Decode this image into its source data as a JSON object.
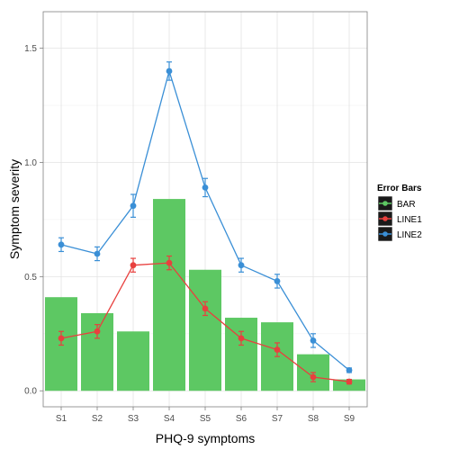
{
  "chart_data": {
    "type": "bar",
    "xlabel": "PHQ-9 symptoms",
    "ylabel": "Symptom severity",
    "categories": [
      "S1",
      "S2",
      "S3",
      "S4",
      "S5",
      "S6",
      "S7",
      "S8",
      "S9"
    ],
    "ylim": [
      -0.07,
      1.66
    ],
    "yticks": [
      "0.0",
      "0.5",
      "1.0",
      "1.5"
    ],
    "yticks_values": [
      0,
      0.5,
      1.0,
      1.5
    ],
    "grid": true,
    "legend_position": "right",
    "legend_title": "Error Bars",
    "series": [
      {
        "name": "BAR",
        "kind": "bar",
        "color": "#5dc863",
        "values": [
          0.41,
          0.34,
          0.26,
          0.84,
          0.53,
          0.32,
          0.3,
          0.16,
          0.05
        ]
      },
      {
        "name": "LINE1",
        "kind": "line",
        "color": "#e8403e",
        "values": [
          0.23,
          0.26,
          0.55,
          0.56,
          0.36,
          0.23,
          0.18,
          0.06,
          0.04
        ],
        "errors": [
          0.03,
          0.03,
          0.03,
          0.03,
          0.03,
          0.03,
          0.03,
          0.02,
          0.01
        ]
      },
      {
        "name": "LINE2",
        "kind": "line",
        "color": "#3a8fd6",
        "values": [
          0.64,
          0.6,
          0.81,
          1.4,
          0.89,
          0.55,
          0.48,
          0.22,
          0.09
        ],
        "errors": [
          0.03,
          0.03,
          0.05,
          0.04,
          0.04,
          0.03,
          0.03,
          0.03,
          0.01
        ]
      }
    ]
  }
}
